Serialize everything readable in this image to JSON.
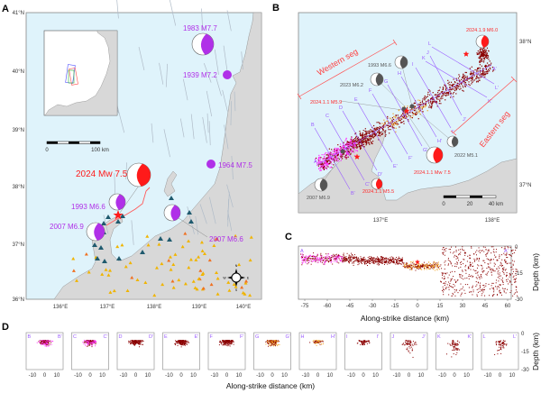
{
  "colors": {
    "sea": "#dff3fb",
    "land": "#d8d8d8",
    "historic": "#b030e8",
    "mainshock": "#ff1a1a",
    "profile": "#9a5cff",
    "seismicity": "#8b0000",
    "pre_swarm": "#ff33ff",
    "aftershock_orange": "#f0a020",
    "station_dark": "#1f5a6e",
    "station_yellow": "#f0b400"
  },
  "panel_a": {
    "label": "A",
    "lat_labels": [
      "41°N",
      "40°N",
      "39°N",
      "38°N",
      "37°N",
      "36°N"
    ],
    "lon_labels": [
      "136°E",
      "137°E",
      "138°E",
      "139°E",
      "140°E"
    ],
    "scale_bar": {
      "zero": "0",
      "end": "100 km"
    },
    "compass": {
      "n": "N",
      "s": "S",
      "e": "E",
      "w": "W"
    },
    "events": [
      {
        "label": "1983 M7.7"
      },
      {
        "label": "1939 M7.2"
      },
      {
        "label": "1964 M7.5"
      },
      {
        "label": "2024 Mw 7.5"
      },
      {
        "label": "1993 M6.6"
      },
      {
        "label": "2007 M6.9"
      },
      {
        "label": "2007 M6.6"
      }
    ]
  },
  "panel_b": {
    "label": "B",
    "lat_labels": [
      "38°N",
      "37°N"
    ],
    "lon_labels": [
      "137°E",
      "138°E"
    ],
    "segments": {
      "western": "Western seg",
      "eastern": "Eastern seg"
    },
    "scale_bar": {
      "zero": "0",
      "mid": "20",
      "end": "40 km"
    },
    "events": [
      {
        "label": "2024.1.9 M6.0"
      },
      {
        "label": "1993 M6.6"
      },
      {
        "label": "2023 M6.2"
      },
      {
        "label": "2024.1.1 M5.9"
      },
      {
        "label": "2022 M5.1"
      },
      {
        "label": "2024.1.1 Mw 7.5"
      },
      {
        "label": "2024.1.1 M5.5"
      },
      {
        "label": "2007 M6.9"
      }
    ],
    "profiles": [
      {
        "start": "A",
        "end": "A'"
      },
      {
        "start": "B",
        "end": "B'"
      },
      {
        "start": "C",
        "end": "C'"
      },
      {
        "start": "D",
        "end": "D'"
      },
      {
        "start": "E",
        "end": "E'"
      },
      {
        "start": "F",
        "end": "F'"
      },
      {
        "start": "G",
        "end": "G'"
      },
      {
        "start": "H",
        "end": "H'"
      },
      {
        "start": "I",
        "end": "I'"
      },
      {
        "start": "J",
        "end": "J'"
      },
      {
        "start": "K",
        "end": "K'"
      },
      {
        "start": "L",
        "end": "L'"
      }
    ]
  },
  "panel_c": {
    "label": "C",
    "profile": {
      "start": "A",
      "end": "A'"
    },
    "x_ticks": [
      "-75",
      "-60",
      "-45",
      "-30",
      "-15",
      "0",
      "15",
      "30",
      "45",
      "60"
    ],
    "y_ticks": [
      "0",
      "-15",
      "-30"
    ],
    "xlabel": "Along-strike distance (km)",
    "ylabel": "Depth (km)"
  },
  "panel_d": {
    "label": "D",
    "profiles": [
      {
        "start": "B",
        "end": "B'"
      },
      {
        "start": "C",
        "end": "C'"
      },
      {
        "start": "D",
        "end": "D'"
      },
      {
        "start": "E",
        "end": "E'"
      },
      {
        "start": "F",
        "end": "F'"
      },
      {
        "start": "G",
        "end": "G'"
      },
      {
        "start": "H",
        "end": "H'"
      },
      {
        "start": "I",
        "end": "I'"
      },
      {
        "start": "J",
        "end": "J'"
      },
      {
        "start": "K",
        "end": "K'"
      },
      {
        "start": "L",
        "end": "L'"
      }
    ],
    "x_ticks": [
      "-10",
      "0",
      "10"
    ],
    "y_ticks": [
      "0",
      "-15",
      "-30"
    ],
    "xlabel": "Along-strike distance (km)",
    "ylabel": "Depth (km)"
  }
}
